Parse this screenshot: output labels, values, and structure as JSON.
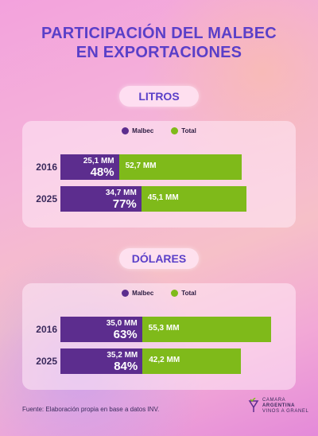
{
  "title": {
    "line1": "PARTICIPACIÓN DEL MALBEC",
    "line2": "EN EXPORTACIONES"
  },
  "colors": {
    "malbec": "#5c2d8e",
    "total": "#7fba1a",
    "accent": "#5a3fc8"
  },
  "legend": {
    "malbec": "Malbec",
    "total": "Total"
  },
  "chart_data": [
    {
      "type": "bar",
      "title": "LITROS",
      "orientation": "horizontal",
      "stacked": true,
      "categories": [
        "2016",
        "2025"
      ],
      "series": [
        {
          "name": "Malbec",
          "values": [
            25.1,
            34.7
          ],
          "value_labels": [
            "25,1 MM",
            "34,7 MM"
          ],
          "share_labels": [
            "48%",
            "77%"
          ]
        },
        {
          "name": "Total",
          "values": [
            52.7,
            45.1
          ],
          "value_labels": [
            "52,7 MM",
            "45,1 MM"
          ]
        }
      ],
      "units": "MM",
      "legend": "top-center"
    },
    {
      "type": "bar",
      "title": "DÓLARES",
      "orientation": "horizontal",
      "stacked": true,
      "categories": [
        "2016",
        "2025"
      ],
      "series": [
        {
          "name": "Malbec",
          "values": [
            35.0,
            35.2
          ],
          "value_labels": [
            "35,0 MM",
            "35,2 MM"
          ],
          "share_labels": [
            "63%",
            "84%"
          ]
        },
        {
          "name": "Total",
          "values": [
            55.3,
            42.2
          ],
          "value_labels": [
            "55,3 MM",
            "42,2 MM"
          ]
        }
      ],
      "units": "MM",
      "legend": "top-center"
    }
  ],
  "source": "Fuente: Elaboración propia en base a datos INV.",
  "logo": {
    "line1": "CAMARA",
    "line2": "ARGENTINA",
    "line3": "VINOS A GRANEL",
    "icon": "wine-glass-icon"
  }
}
